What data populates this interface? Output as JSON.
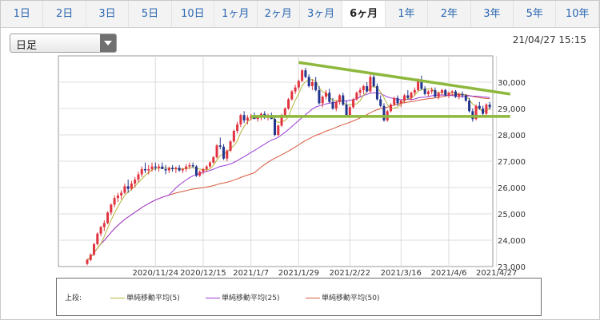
{
  "tabs": [
    {
      "label": "1日",
      "active": false
    },
    {
      "label": "2日",
      "active": false
    },
    {
      "label": "3日",
      "active": false
    },
    {
      "label": "5日",
      "active": false
    },
    {
      "label": "10日",
      "active": false
    },
    {
      "label": "1ヶ月",
      "active": false
    },
    {
      "label": "2ヶ月",
      "active": false
    },
    {
      "label": "3ヶ月",
      "active": false
    },
    {
      "label": "6ヶ月",
      "active": true
    },
    {
      "label": "1年",
      "active": false
    },
    {
      "label": "2年",
      "active": false
    },
    {
      "label": "3年",
      "active": false
    },
    {
      "label": "5年",
      "active": false
    },
    {
      "label": "10年",
      "active": false
    }
  ],
  "select": {
    "value": "日足"
  },
  "datetime": "21/04/27 15:15",
  "legend": {
    "prefix": "上段:",
    "items": [
      {
        "label": "単純移動平均(5)",
        "color": "#b4b43a"
      },
      {
        "label": "単純移動平均(25)",
        "color": "#9b3bd6"
      },
      {
        "label": "単純移動平均(50)",
        "color": "#d8573a"
      }
    ]
  },
  "chart_data": {
    "type": "candlestick",
    "ylim": [
      23000,
      31000
    ],
    "yticks": [
      "23,000",
      "24,000",
      "25,000",
      "26,000",
      "27,000",
      "28,000",
      "29,000",
      "30,000"
    ],
    "ytick_values": [
      23000,
      24000,
      25000,
      26000,
      27000,
      28000,
      29000,
      30000
    ],
    "xticks": [
      "2020/11/24",
      "2020/12/15",
      "2021/1/7",
      "2021/1/29",
      "2021/2/22",
      "2021/3/16",
      "2021/4/6",
      "2021/4/27"
    ],
    "xtick_index": [
      20,
      34,
      48,
      62,
      77,
      92,
      106,
      120
    ],
    "up_color": "#e0333f",
    "down_color": "#21358f",
    "ma_colors": {
      "ma5": "#b4b43a",
      "ma25": "#9b3bd6",
      "ma50": "#d8573a"
    },
    "trendline_color": "#8db83b",
    "candles": [
      [
        23100,
        23300,
        23050,
        23250
      ],
      [
        23250,
        23500,
        23200,
        23450
      ],
      [
        23450,
        23900,
        23400,
        23850
      ],
      [
        23850,
        24300,
        23800,
        24250
      ],
      [
        24250,
        24550,
        24150,
        24500
      ],
      [
        24500,
        24750,
        24350,
        24650
      ],
      [
        24650,
        25100,
        24600,
        25050
      ],
      [
        25050,
        25400,
        24950,
        25350
      ],
      [
        25350,
        25700,
        25250,
        25600
      ],
      [
        25600,
        25800,
        25450,
        25700
      ],
      [
        25700,
        25900,
        25550,
        25800
      ],
      [
        25800,
        26150,
        25750,
        26050
      ],
      [
        26050,
        26300,
        25800,
        25950
      ],
      [
        25950,
        26250,
        25900,
        26150
      ],
      [
        26150,
        26400,
        26000,
        26300
      ],
      [
        26300,
        26600,
        26200,
        26500
      ],
      [
        26500,
        26800,
        26400,
        26700
      ],
      [
        26700,
        26950,
        26550,
        26650
      ],
      [
        26650,
        26850,
        26500,
        26700
      ],
      [
        26700,
        26950,
        26600,
        26800
      ],
      [
        26800,
        26950,
        26650,
        26750
      ],
      [
        26750,
        26900,
        26600,
        26800
      ],
      [
        26800,
        26950,
        26700,
        26700
      ],
      [
        26700,
        26850,
        26500,
        26650
      ],
      [
        26650,
        26800,
        26550,
        26750
      ],
      [
        26750,
        26850,
        26600,
        26700
      ],
      [
        26700,
        26800,
        26550,
        26750
      ],
      [
        26750,
        26850,
        26600,
        26650
      ],
      [
        26650,
        26750,
        26550,
        26700
      ],
      [
        26700,
        26900,
        26600,
        26800
      ],
      [
        26800,
        26950,
        26700,
        26850
      ],
      [
        26850,
        26950,
        26750,
        26800
      ],
      [
        26800,
        26850,
        26400,
        26450
      ],
      [
        26450,
        26650,
        26400,
        26600
      ],
      [
        26600,
        26750,
        26500,
        26700
      ],
      [
        26700,
        26850,
        26600,
        26800
      ],
      [
        26800,
        27000,
        26750,
        26950
      ],
      [
        26950,
        27200,
        26900,
        27150
      ],
      [
        27150,
        27650,
        27100,
        27600
      ],
      [
        27600,
        27900,
        27450,
        27550
      ],
      [
        27550,
        27650,
        27050,
        27100
      ],
      [
        27100,
        27450,
        27000,
        27400
      ],
      [
        27400,
        27800,
        27350,
        27750
      ],
      [
        27750,
        28200,
        27700,
        28150
      ],
      [
        28150,
        28500,
        28050,
        28400
      ],
      [
        28400,
        28800,
        28300,
        28750
      ],
      [
        28750,
        28900,
        28450,
        28550
      ],
      [
        28550,
        28750,
        28400,
        28650
      ],
      [
        28650,
        28800,
        28550,
        28700
      ],
      [
        28700,
        28850,
        28600,
        28600
      ],
      [
        28600,
        28750,
        28500,
        28700
      ],
      [
        28700,
        28850,
        28550,
        28800
      ],
      [
        28800,
        28900,
        28600,
        28650
      ],
      [
        28650,
        28800,
        28550,
        28750
      ],
      [
        28750,
        28850,
        28600,
        28600
      ],
      [
        28600,
        28700,
        27950,
        28000
      ],
      [
        28000,
        28400,
        27950,
        28350
      ],
      [
        28350,
        28800,
        28300,
        28750
      ],
      [
        28750,
        29050,
        28700,
        29000
      ],
      [
        29000,
        29400,
        28950,
        29350
      ],
      [
        29350,
        29700,
        29300,
        29650
      ],
      [
        29650,
        29900,
        29550,
        29800
      ],
      [
        29800,
        30100,
        29700,
        30050
      ],
      [
        30050,
        30500,
        30000,
        30450
      ],
      [
        30450,
        30550,
        30150,
        30200
      ],
      [
        30200,
        30300,
        29800,
        29850
      ],
      [
        29850,
        30100,
        29700,
        30000
      ],
      [
        30000,
        30200,
        29650,
        29700
      ],
      [
        29700,
        29850,
        29150,
        29200
      ],
      [
        29200,
        29500,
        29050,
        29450
      ],
      [
        29450,
        29700,
        29350,
        29600
      ],
      [
        29600,
        29750,
        29200,
        29250
      ],
      [
        29250,
        29400,
        28950,
        29000
      ],
      [
        29000,
        29300,
        28900,
        29250
      ],
      [
        29250,
        29550,
        29150,
        29500
      ],
      [
        29500,
        29600,
        29100,
        29150
      ],
      [
        29150,
        29300,
        28700,
        28750
      ],
      [
        28750,
        29100,
        28700,
        29050
      ],
      [
        29050,
        29400,
        29000,
        29350
      ],
      [
        29350,
        29650,
        29300,
        29600
      ],
      [
        29600,
        29800,
        29450,
        29700
      ],
      [
        29700,
        29900,
        29550,
        29850
      ],
      [
        29850,
        30000,
        29600,
        29650
      ],
      [
        29650,
        30300,
        29600,
        30200
      ],
      [
        30200,
        30350,
        29800,
        29850
      ],
      [
        29850,
        29950,
        29300,
        29350
      ],
      [
        29350,
        29500,
        29050,
        29100
      ],
      [
        29100,
        29200,
        28500,
        28550
      ],
      [
        28550,
        28950,
        28500,
        28900
      ],
      [
        28900,
        29200,
        28850,
        29150
      ],
      [
        29150,
        29450,
        29100,
        29400
      ],
      [
        29400,
        29500,
        29100,
        29200
      ],
      [
        29200,
        29350,
        29050,
        29300
      ],
      [
        29300,
        29550,
        29200,
        29500
      ],
      [
        29500,
        29700,
        29350,
        29400
      ],
      [
        29400,
        29650,
        29300,
        29600
      ],
      [
        29600,
        29800,
        29500,
        29700
      ],
      [
        29700,
        30150,
        29650,
        30100
      ],
      [
        30100,
        30250,
        29700,
        29750
      ],
      [
        29750,
        29850,
        29500,
        29550
      ],
      [
        29550,
        29700,
        29450,
        29650
      ],
      [
        29650,
        29800,
        29550,
        29700
      ],
      [
        29700,
        29800,
        29400,
        29450
      ],
      [
        29450,
        29650,
        29350,
        29600
      ],
      [
        29600,
        29750,
        29500,
        29700
      ],
      [
        29700,
        29750,
        29450,
        29500
      ],
      [
        29500,
        29650,
        29400,
        29600
      ],
      [
        29600,
        29700,
        29500,
        29650
      ],
      [
        29650,
        29700,
        29400,
        29450
      ],
      [
        29450,
        29600,
        29350,
        29550
      ],
      [
        29550,
        29650,
        29400,
        29500
      ],
      [
        29500,
        29550,
        29250,
        29300
      ],
      [
        29300,
        29400,
        28850,
        28900
      ],
      [
        28900,
        29000,
        28500,
        28600
      ],
      [
        28600,
        29150,
        28550,
        29100
      ],
      [
        29100,
        29250,
        28950,
        29000
      ],
      [
        29000,
        29100,
        28750,
        28800
      ],
      [
        28800,
        29200,
        28750,
        29150
      ],
      [
        29150,
        29250,
        28950,
        29050
      ]
    ],
    "trendlines": [
      {
        "name": "resistance",
        "from": {
          "i": 62,
          "y": 30750
        },
        "to": {
          "i": 124,
          "y": 29550
        }
      },
      {
        "name": "support",
        "from": {
          "i": 48,
          "y": 28700
        },
        "to": {
          "i": 124,
          "y": 28700
        }
      }
    ]
  }
}
